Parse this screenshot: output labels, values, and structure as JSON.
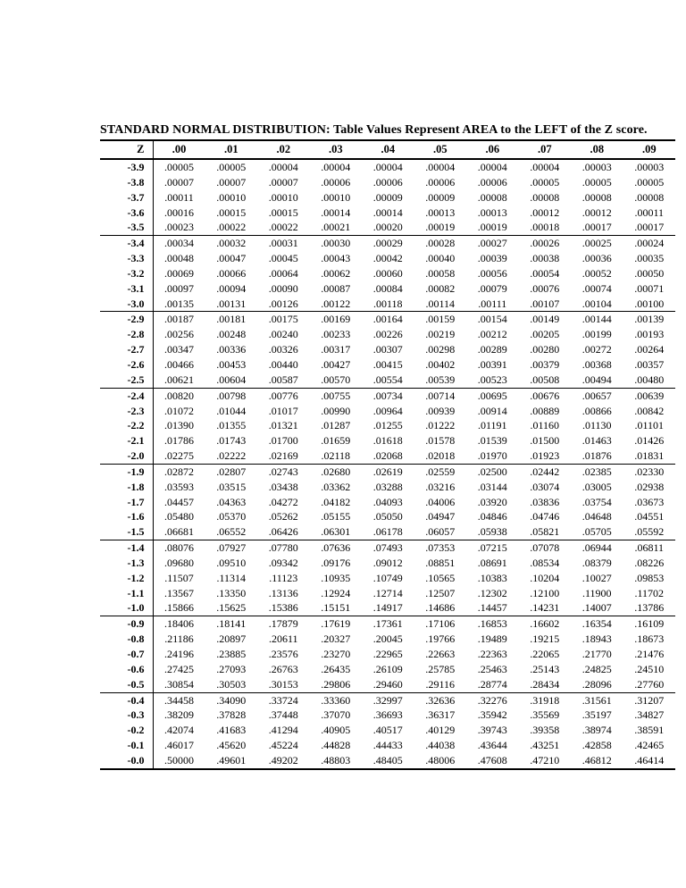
{
  "title": "STANDARD NORMAL DISTRIBUTION: Table Values Represent AREA to the LEFT of the Z score.",
  "table": {
    "corner_header": "Z",
    "col_headers": [
      ".00",
      ".01",
      ".02",
      ".03",
      ".04",
      ".05",
      ".06",
      ".07",
      ".08",
      ".09"
    ],
    "rows": [
      {
        "z": "-3.9",
        "values": [
          ".00005",
          ".00005",
          ".00004",
          ".00004",
          ".00004",
          ".00004",
          ".00004",
          ".00004",
          ".00003",
          ".00003"
        ]
      },
      {
        "z": "-3.8",
        "values": [
          ".00007",
          ".00007",
          ".00007",
          ".00006",
          ".00006",
          ".00006",
          ".00006",
          ".00005",
          ".00005",
          ".00005"
        ]
      },
      {
        "z": "-3.7",
        "values": [
          ".00011",
          ".00010",
          ".00010",
          ".00010",
          ".00009",
          ".00009",
          ".00008",
          ".00008",
          ".00008",
          ".00008"
        ]
      },
      {
        "z": "-3.6",
        "values": [
          ".00016",
          ".00015",
          ".00015",
          ".00014",
          ".00014",
          ".00013",
          ".00013",
          ".00012",
          ".00012",
          ".00011"
        ]
      },
      {
        "z": "-3.5",
        "values": [
          ".00023",
          ".00022",
          ".00022",
          ".00021",
          ".00020",
          ".00019",
          ".00019",
          ".00018",
          ".00017",
          ".00017"
        ]
      },
      {
        "z": "-3.4",
        "values": [
          ".00034",
          ".00032",
          ".00031",
          ".00030",
          ".00029",
          ".00028",
          ".00027",
          ".00026",
          ".00025",
          ".00024"
        ]
      },
      {
        "z": "-3.3",
        "values": [
          ".00048",
          ".00047",
          ".00045",
          ".00043",
          ".00042",
          ".00040",
          ".00039",
          ".00038",
          ".00036",
          ".00035"
        ]
      },
      {
        "z": "-3.2",
        "values": [
          ".00069",
          ".00066",
          ".00064",
          ".00062",
          ".00060",
          ".00058",
          ".00056",
          ".00054",
          ".00052",
          ".00050"
        ]
      },
      {
        "z": "-3.1",
        "values": [
          ".00097",
          ".00094",
          ".00090",
          ".00087",
          ".00084",
          ".00082",
          ".00079",
          ".00076",
          ".00074",
          ".00071"
        ]
      },
      {
        "z": "-3.0",
        "values": [
          ".00135",
          ".00131",
          ".00126",
          ".00122",
          ".00118",
          ".00114",
          ".00111",
          ".00107",
          ".00104",
          ".00100"
        ]
      },
      {
        "z": "-2.9",
        "values": [
          ".00187",
          ".00181",
          ".00175",
          ".00169",
          ".00164",
          ".00159",
          ".00154",
          ".00149",
          ".00144",
          ".00139"
        ]
      },
      {
        "z": "-2.8",
        "values": [
          ".00256",
          ".00248",
          ".00240",
          ".00233",
          ".00226",
          ".00219",
          ".00212",
          ".00205",
          ".00199",
          ".00193"
        ]
      },
      {
        "z": "-2.7",
        "values": [
          ".00347",
          ".00336",
          ".00326",
          ".00317",
          ".00307",
          ".00298",
          ".00289",
          ".00280",
          ".00272",
          ".00264"
        ]
      },
      {
        "z": "-2.6",
        "values": [
          ".00466",
          ".00453",
          ".00440",
          ".00427",
          ".00415",
          ".00402",
          ".00391",
          ".00379",
          ".00368",
          ".00357"
        ]
      },
      {
        "z": "-2.5",
        "values": [
          ".00621",
          ".00604",
          ".00587",
          ".00570",
          ".00554",
          ".00539",
          ".00523",
          ".00508",
          ".00494",
          ".00480"
        ]
      },
      {
        "z": "-2.4",
        "values": [
          ".00820",
          ".00798",
          ".00776",
          ".00755",
          ".00734",
          ".00714",
          ".00695",
          ".00676",
          ".00657",
          ".00639"
        ]
      },
      {
        "z": "-2.3",
        "values": [
          ".01072",
          ".01044",
          ".01017",
          ".00990",
          ".00964",
          ".00939",
          ".00914",
          ".00889",
          ".00866",
          ".00842"
        ]
      },
      {
        "z": "-2.2",
        "values": [
          ".01390",
          ".01355",
          ".01321",
          ".01287",
          ".01255",
          ".01222",
          ".01191",
          ".01160",
          ".01130",
          ".01101"
        ]
      },
      {
        "z": "-2.1",
        "values": [
          ".01786",
          ".01743",
          ".01700",
          ".01659",
          ".01618",
          ".01578",
          ".01539",
          ".01500",
          ".01463",
          ".01426"
        ]
      },
      {
        "z": "-2.0",
        "values": [
          ".02275",
          ".02222",
          ".02169",
          ".02118",
          ".02068",
          ".02018",
          ".01970",
          ".01923",
          ".01876",
          ".01831"
        ]
      },
      {
        "z": "-1.9",
        "values": [
          ".02872",
          ".02807",
          ".02743",
          ".02680",
          ".02619",
          ".02559",
          ".02500",
          ".02442",
          ".02385",
          ".02330"
        ]
      },
      {
        "z": "-1.8",
        "values": [
          ".03593",
          ".03515",
          ".03438",
          ".03362",
          ".03288",
          ".03216",
          ".03144",
          ".03074",
          ".03005",
          ".02938"
        ]
      },
      {
        "z": "-1.7",
        "values": [
          ".04457",
          ".04363",
          ".04272",
          ".04182",
          ".04093",
          ".04006",
          ".03920",
          ".03836",
          ".03754",
          ".03673"
        ]
      },
      {
        "z": "-1.6",
        "values": [
          ".05480",
          ".05370",
          ".05262",
          ".05155",
          ".05050",
          ".04947",
          ".04846",
          ".04746",
          ".04648",
          ".04551"
        ]
      },
      {
        "z": "-1.5",
        "values": [
          ".06681",
          ".06552",
          ".06426",
          ".06301",
          ".06178",
          ".06057",
          ".05938",
          ".05821",
          ".05705",
          ".05592"
        ]
      },
      {
        "z": "-1.4",
        "values": [
          ".08076",
          ".07927",
          ".07780",
          ".07636",
          ".07493",
          ".07353",
          ".07215",
          ".07078",
          ".06944",
          ".06811"
        ]
      },
      {
        "z": "-1.3",
        "values": [
          ".09680",
          ".09510",
          ".09342",
          ".09176",
          ".09012",
          ".08851",
          ".08691",
          ".08534",
          ".08379",
          ".08226"
        ]
      },
      {
        "z": "-1.2",
        "values": [
          ".11507",
          ".11314",
          ".11123",
          ".10935",
          ".10749",
          ".10565",
          ".10383",
          ".10204",
          ".10027",
          ".09853"
        ]
      },
      {
        "z": "-1.1",
        "values": [
          ".13567",
          ".13350",
          ".13136",
          ".12924",
          ".12714",
          ".12507",
          ".12302",
          ".12100",
          ".11900",
          ".11702"
        ]
      },
      {
        "z": "-1.0",
        "values": [
          ".15866",
          ".15625",
          ".15386",
          ".15151",
          ".14917",
          ".14686",
          ".14457",
          ".14231",
          ".14007",
          ".13786"
        ]
      },
      {
        "z": "-0.9",
        "values": [
          ".18406",
          ".18141",
          ".17879",
          ".17619",
          ".17361",
          ".17106",
          ".16853",
          ".16602",
          ".16354",
          ".16109"
        ]
      },
      {
        "z": "-0.8",
        "values": [
          ".21186",
          ".20897",
          ".20611",
          ".20327",
          ".20045",
          ".19766",
          ".19489",
          ".19215",
          ".18943",
          ".18673"
        ]
      },
      {
        "z": "-0.7",
        "values": [
          ".24196",
          ".23885",
          ".23576",
          ".23270",
          ".22965",
          ".22663",
          ".22363",
          ".22065",
          ".21770",
          ".21476"
        ]
      },
      {
        "z": "-0.6",
        "values": [
          ".27425",
          ".27093",
          ".26763",
          ".26435",
          ".26109",
          ".25785",
          ".25463",
          ".25143",
          ".24825",
          ".24510"
        ]
      },
      {
        "z": "-0.5",
        "values": [
          ".30854",
          ".30503",
          ".30153",
          ".29806",
          ".29460",
          ".29116",
          ".28774",
          ".28434",
          ".28096",
          ".27760"
        ]
      },
      {
        "z": "-0.4",
        "values": [
          ".34458",
          ".34090",
          ".33724",
          ".33360",
          ".32997",
          ".32636",
          ".32276",
          ".31918",
          ".31561",
          ".31207"
        ]
      },
      {
        "z": "-0.3",
        "values": [
          ".38209",
          ".37828",
          ".37448",
          ".37070",
          ".36693",
          ".36317",
          ".35942",
          ".35569",
          ".35197",
          ".34827"
        ]
      },
      {
        "z": "-0.2",
        "values": [
          ".42074",
          ".41683",
          ".41294",
          ".40905",
          ".40517",
          ".40129",
          ".39743",
          ".39358",
          ".38974",
          ".38591"
        ]
      },
      {
        "z": "-0.1",
        "values": [
          ".46017",
          ".45620",
          ".45224",
          ".44828",
          ".44433",
          ".44038",
          ".43644",
          ".43251",
          ".42858",
          ".42465"
        ]
      },
      {
        "z": "-0.0",
        "values": [
          ".50000",
          ".49601",
          ".49202",
          ".48803",
          ".48405",
          ".48006",
          ".47608",
          ".47210",
          ".46812",
          ".46414"
        ]
      }
    ]
  }
}
